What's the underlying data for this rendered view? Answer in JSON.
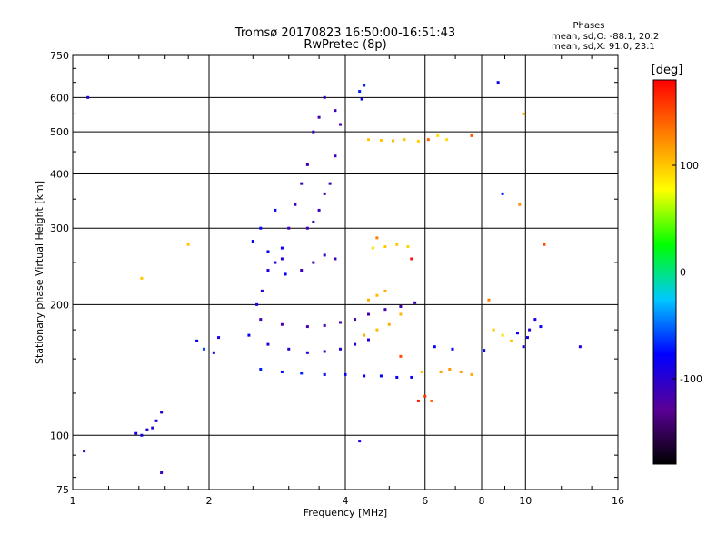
{
  "header": {
    "title_line1": "Tromsø 20170823 16:50:00-16:51:43",
    "title_line2": "RwPretec (8p)"
  },
  "stats": {
    "heading": "Phases",
    "line_o": "mean, sd,O: -88.1, 20.2",
    "line_x": "mean, sd,X:  91.0, 23.1"
  },
  "colorbar": {
    "unit": "[deg]",
    "ticks": [
      "100",
      "0",
      "-100"
    ],
    "tick_values": [
      100,
      0,
      -100
    ],
    "range": [
      -180,
      180
    ],
    "colors": [
      "#000000",
      "#5a0096",
      "#0000ff",
      "#00c8ff",
      "#00ff00",
      "#ffff00",
      "#ff8000",
      "#ff0000"
    ]
  },
  "chart_data": {
    "type": "scatter",
    "title": "Tromsø 20170823 16:50:00-16:51:43",
    "subtitle": "RwPretec (8p)",
    "xlabel": "Frequency [MHz]",
    "ylabel": "Stationary phase Virtual Height [km]",
    "xscale": "log",
    "yscale": "log",
    "xlim": [
      1,
      16
    ],
    "ylim": [
      75,
      750
    ],
    "xticks": [
      1,
      2,
      4,
      6,
      8,
      10,
      16
    ],
    "xtick_labels": [
      "1",
      "2",
      "4",
      "6",
      "8",
      "10",
      "16"
    ],
    "yticks": [
      75,
      100,
      200,
      300,
      400,
      500,
      600,
      750
    ],
    "ytick_labels": [
      "75",
      "100",
      "200",
      "300",
      "400",
      "500",
      "600",
      "750"
    ],
    "grid": true,
    "points": [
      [
        1.08,
        600,
        -100
      ],
      [
        1.06,
        92,
        -100
      ],
      [
        1.42,
        230,
        100
      ],
      [
        1.57,
        82,
        -110
      ],
      [
        1.8,
        275,
        100
      ],
      [
        1.38,
        101,
        -95
      ],
      [
        1.42,
        100,
        -90
      ],
      [
        1.46,
        103,
        -100
      ],
      [
        1.5,
        104,
        -95
      ],
      [
        1.53,
        108,
        -90
      ],
      [
        1.57,
        113,
        -100
      ],
      [
        1.88,
        165,
        -80
      ],
      [
        1.95,
        158,
        -60
      ],
      [
        2.05,
        155,
        -80
      ],
      [
        2.1,
        168,
        -90
      ],
      [
        2.45,
        170,
        -80
      ],
      [
        2.5,
        280,
        -80
      ],
      [
        2.6,
        300,
        -75
      ],
      [
        2.7,
        265,
        -80
      ],
      [
        2.8,
        330,
        -75
      ],
      [
        2.9,
        270,
        -80
      ],
      [
        2.95,
        235,
        -80
      ],
      [
        2.55,
        200,
        -95
      ],
      [
        2.62,
        215,
        -95
      ],
      [
        2.7,
        240,
        -90
      ],
      [
        2.8,
        250,
        -90
      ],
      [
        2.9,
        255,
        -95
      ],
      [
        3.0,
        300,
        -110
      ],
      [
        3.1,
        340,
        -110
      ],
      [
        3.2,
        380,
        -110
      ],
      [
        3.3,
        420,
        -110
      ],
      [
        3.4,
        500,
        -110
      ],
      [
        3.5,
        540,
        -115
      ],
      [
        3.6,
        600,
        -110
      ],
      [
        3.8,
        560,
        -110
      ],
      [
        3.9,
        520,
        -115
      ],
      [
        3.3,
        300,
        -110
      ],
      [
        3.4,
        310,
        -110
      ],
      [
        3.5,
        330,
        -110
      ],
      [
        3.6,
        360,
        -115
      ],
      [
        3.7,
        380,
        -110
      ],
      [
        3.8,
        440,
        -110
      ],
      [
        3.2,
        240,
        -110
      ],
      [
        3.4,
        250,
        -115
      ],
      [
        3.6,
        260,
        -110
      ],
      [
        3.8,
        255,
        -110
      ],
      [
        2.6,
        185,
        -115
      ],
      [
        2.9,
        180,
        -120
      ],
      [
        3.3,
        178,
        -120
      ],
      [
        3.6,
        179,
        -120
      ],
      [
        3.9,
        182,
        -120
      ],
      [
        4.2,
        185,
        -120
      ],
      [
        4.5,
        190,
        -115
      ],
      [
        4.9,
        195,
        -120
      ],
      [
        5.3,
        198,
        -115
      ],
      [
        5.7,
        202,
        -110
      ],
      [
        2.7,
        162,
        -100
      ],
      [
        3.0,
        158,
        -100
      ],
      [
        3.3,
        155,
        -100
      ],
      [
        3.6,
        156,
        -105
      ],
      [
        3.9,
        158,
        -100
      ],
      [
        4.2,
        162,
        -100
      ],
      [
        4.5,
        166,
        -100
      ],
      [
        2.6,
        142,
        -70
      ],
      [
        2.9,
        140,
        -75
      ],
      [
        3.2,
        139,
        -70
      ],
      [
        3.6,
        138,
        -75
      ],
      [
        4.0,
        138,
        -80
      ],
      [
        4.4,
        137,
        -80
      ],
      [
        4.8,
        137,
        -80
      ],
      [
        5.2,
        136,
        -80
      ],
      [
        5.6,
        136,
        -75
      ],
      [
        4.3,
        620,
        -70
      ],
      [
        4.4,
        640,
        -70
      ],
      [
        4.35,
        595,
        -80
      ],
      [
        4.5,
        480,
        100
      ],
      [
        4.8,
        478,
        100
      ],
      [
        5.1,
        477,
        105
      ],
      [
        5.4,
        480,
        100
      ],
      [
        5.8,
        476,
        95
      ],
      [
        6.4,
        490,
        90
      ],
      [
        6.7,
        480,
        90
      ],
      [
        4.6,
        270,
        90
      ],
      [
        4.9,
        272,
        100
      ],
      [
        5.2,
        275,
        100
      ],
      [
        5.5,
        272,
        95
      ],
      [
        4.5,
        205,
        110
      ],
      [
        4.7,
        210,
        105
      ],
      [
        4.9,
        215,
        110
      ],
      [
        4.4,
        170,
        110
      ],
      [
        4.7,
        175,
        105
      ],
      [
        5.0,
        180,
        110
      ],
      [
        5.3,
        190,
        105
      ],
      [
        6.5,
        140,
        115
      ],
      [
        6.8,
        142,
        120
      ],
      [
        7.2,
        140,
        115
      ],
      [
        7.6,
        138,
        110
      ],
      [
        6.3,
        160,
        -80
      ],
      [
        6.9,
        158,
        -80
      ],
      [
        8.1,
        157,
        -80
      ],
      [
        8.5,
        175,
        100
      ],
      [
        8.9,
        170,
        90
      ],
      [
        9.3,
        165,
        100
      ],
      [
        9.6,
        172,
        -80
      ],
      [
        9.9,
        160,
        -85
      ],
      [
        10.2,
        175,
        -100
      ],
      [
        10.5,
        185,
        -90
      ],
      [
        10.8,
        178,
        -85
      ],
      [
        10.1,
        168,
        -90
      ],
      [
        13.2,
        160,
        -90
      ],
      [
        8.7,
        650,
        -80
      ],
      [
        8.9,
        360,
        -70
      ],
      [
        9.9,
        550,
        110
      ],
      [
        9.7,
        340,
        120
      ],
      [
        11.0,
        275,
        150
      ],
      [
        7.6,
        490,
        145
      ],
      [
        6.1,
        480,
        140
      ],
      [
        8.3,
        205,
        130
      ],
      [
        5.6,
        255,
        175
      ],
      [
        4.7,
        285,
        130
      ],
      [
        4.3,
        97,
        -90
      ],
      [
        5.3,
        152,
        150
      ],
      [
        5.9,
        140,
        100
      ],
      [
        5.8,
        120,
        170
      ],
      [
        6.0,
        123,
        160
      ],
      [
        6.2,
        120,
        140
      ]
    ]
  }
}
